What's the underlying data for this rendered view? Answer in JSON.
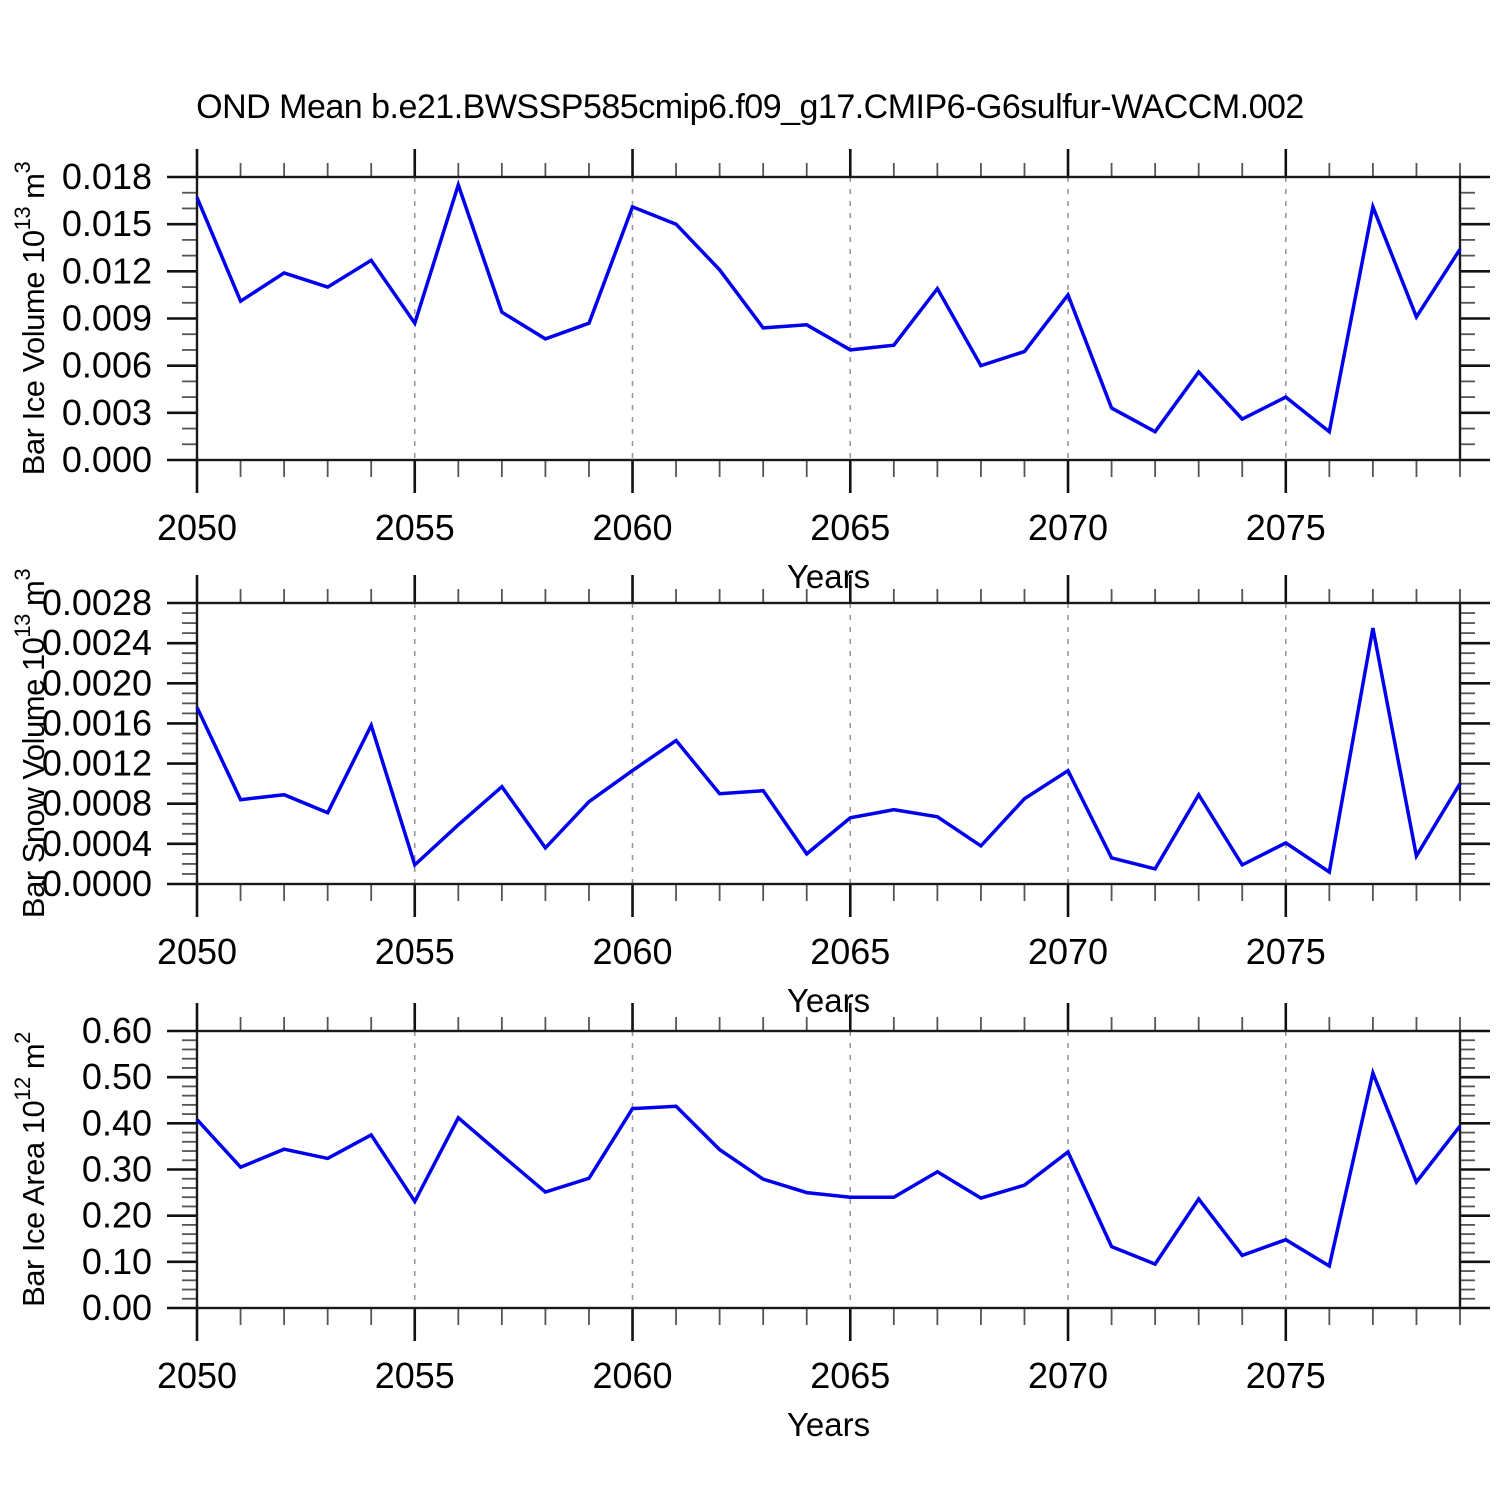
{
  "title": "OND Mean b.e21.BWSSP585cmip6.f09_g17.CMIP6-G6sulfur-WACCM.002",
  "colors": {
    "line": "#0000ee",
    "grid": "#999999",
    "axis": "#1a1a1a"
  },
  "chart_data": [
    {
      "type": "line",
      "name": "bar-ice-volume",
      "ylabel": "Bar Ice Volume 10^13 m^3",
      "ylabel_parts": [
        {
          "t": "Bar Ice Volume 10"
        },
        {
          "t": "13",
          "sup": true
        },
        {
          "t": " m"
        },
        {
          "t": "3",
          "sup": true
        }
      ],
      "xlabel": "Years",
      "x_range": [
        2050,
        2079
      ],
      "x": [
        2050,
        2051,
        2052,
        2053,
        2054,
        2055,
        2056,
        2057,
        2058,
        2059,
        2060,
        2061,
        2062,
        2063,
        2064,
        2065,
        2066,
        2067,
        2068,
        2069,
        2070,
        2071,
        2072,
        2073,
        2074,
        2075,
        2076,
        2077,
        2078,
        2079
      ],
      "values": [
        0.0167,
        0.0101,
        0.0119,
        0.011,
        0.0127,
        0.0087,
        0.0175,
        0.0094,
        0.0077,
        0.0087,
        0.0161,
        0.015,
        0.0121,
        0.0084,
        0.0086,
        0.007,
        0.0073,
        0.0109,
        0.006,
        0.0069,
        0.0105,
        0.0033,
        0.0018,
        0.0056,
        0.0026,
        0.004,
        0.0018,
        0.0161,
        0.0091,
        0.0134
      ],
      "ylim": [
        0.0,
        0.018
      ],
      "ytick_major": 0.003,
      "ytick_minor": 0.001,
      "ytick_decimals": 3,
      "ytick_labels": [
        "0.000",
        "0.003",
        "0.006",
        "0.009",
        "0.012",
        "0.015",
        "0.018"
      ],
      "xticks": [
        2050,
        2055,
        2060,
        2065,
        2070,
        2075
      ],
      "grid": "vertical-dashed-at-major-xticks",
      "legend": "none"
    },
    {
      "type": "line",
      "name": "bar-snow-volume",
      "ylabel": "Bar Snow Volume 10^13 m^3",
      "ylabel_parts": [
        {
          "t": "Bar Snow Volume 10"
        },
        {
          "t": "13",
          "sup": true
        },
        {
          "t": " m"
        },
        {
          "t": "3",
          "sup": true
        }
      ],
      "xlabel": "Years",
      "x_range": [
        2050,
        2079
      ],
      "x": [
        2050,
        2051,
        2052,
        2053,
        2054,
        2055,
        2056,
        2057,
        2058,
        2059,
        2060,
        2061,
        2062,
        2063,
        2064,
        2065,
        2066,
        2067,
        2068,
        2069,
        2070,
        2071,
        2072,
        2073,
        2074,
        2075,
        2076,
        2077,
        2078,
        2079
      ],
      "values": [
        0.00176,
        0.00084,
        0.00089,
        0.00071,
        0.00158,
        0.00019,
        0.00059,
        0.00097,
        0.00036,
        0.00082,
        0.00113,
        0.00143,
        0.0009,
        0.00093,
        0.0003,
        0.00066,
        0.00074,
        0.00067,
        0.00038,
        0.00085,
        0.00113,
        0.00026,
        0.00015,
        0.00089,
        0.00019,
        0.00041,
        0.00012,
        0.00255,
        0.00028,
        0.001
      ],
      "ylim": [
        0.0,
        0.0028
      ],
      "ytick_major": 0.0004,
      "ytick_minor": 0.0001,
      "ytick_decimals": 4,
      "ytick_labels": [
        "0.0000",
        "0.0004",
        "0.0008",
        "0.0012",
        "0.0016",
        "0.0020",
        "0.0024",
        "0.0028"
      ],
      "xticks": [
        2050,
        2055,
        2060,
        2065,
        2070,
        2075
      ],
      "grid": "vertical-dashed-at-major-xticks",
      "legend": "none"
    },
    {
      "type": "line",
      "name": "bar-ice-area",
      "ylabel": "Bar Ice Area 10^12 m^2",
      "ylabel_parts": [
        {
          "t": "Bar Ice Area 10"
        },
        {
          "t": "12",
          "sup": true
        },
        {
          "t": " m"
        },
        {
          "t": "2",
          "sup": true
        }
      ],
      "xlabel": "Years",
      "x_range": [
        2050,
        2079
      ],
      "x": [
        2050,
        2051,
        2052,
        2053,
        2054,
        2055,
        2056,
        2057,
        2058,
        2059,
        2060,
        2061,
        2062,
        2063,
        2064,
        2065,
        2066,
        2067,
        2068,
        2069,
        2070,
        2071,
        2072,
        2073,
        2074,
        2075,
        2076,
        2077,
        2078,
        2079
      ],
      "values": [
        0.408,
        0.305,
        0.344,
        0.324,
        0.375,
        0.231,
        0.412,
        0.331,
        0.251,
        0.281,
        0.432,
        0.437,
        0.343,
        0.279,
        0.25,
        0.24,
        0.24,
        0.295,
        0.238,
        0.266,
        0.338,
        0.133,
        0.095,
        0.236,
        0.114,
        0.148,
        0.091,
        0.509,
        0.273,
        0.394
      ],
      "ylim": [
        0.0,
        0.6
      ],
      "ytick_major": 0.1,
      "ytick_minor": 0.02,
      "ytick_decimals": 2,
      "ytick_labels": [
        "0.00",
        "0.10",
        "0.20",
        "0.30",
        "0.40",
        "0.50",
        "0.60"
      ],
      "xticks": [
        2050,
        2055,
        2060,
        2065,
        2070,
        2075
      ],
      "grid": "vertical-dashed-at-major-xticks",
      "legend": "none"
    }
  ]
}
